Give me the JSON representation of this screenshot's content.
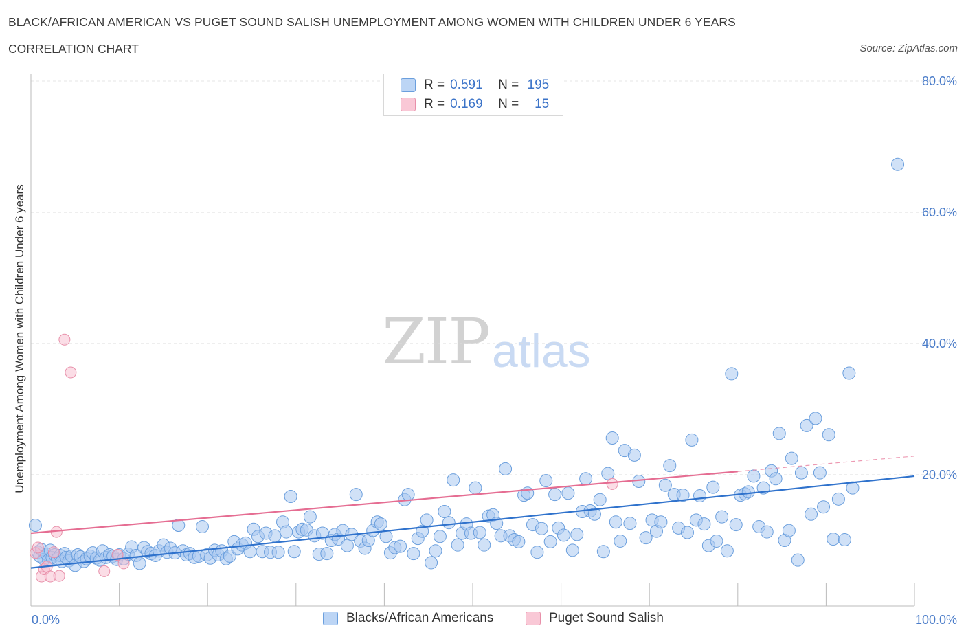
{
  "header": {
    "title": "BLACK/AFRICAN AMERICAN VS PUGET SOUND SALISH UNEMPLOYMENT AMONG WOMEN WITH CHILDREN UNDER 6 YEARS",
    "subtitle": "CORRELATION CHART",
    "source": "Source: ZipAtlas.com"
  },
  "watermark": {
    "zip": "ZIP",
    "atlas": "atlas"
  },
  "legend": {
    "rows": [
      {
        "r_label": "R =",
        "r_value": "0.591",
        "n_label": "N =",
        "n_value": "195"
      },
      {
        "r_label": "R =",
        "r_value": "0.169",
        "n_label": "N =",
        "n_value": "15"
      }
    ]
  },
  "bottom_legend": {
    "series1": "Blacks/African Americans",
    "series2": "Puget Sound Salish"
  },
  "colors": {
    "blue_fill": "#a9c8f0",
    "blue_stroke": "#6b9fdd",
    "blue_line": "#2f72cc",
    "pink_fill": "#f7bccd",
    "pink_stroke": "#e890aa",
    "pink_line": "#e56d92",
    "tick_text": "#4a7cc9"
  },
  "chart_data": {
    "type": "scatter",
    "title": "BLACK/AFRICAN AMERICAN VS PUGET SOUND SALISH UNEMPLOYMENT AMONG WOMEN WITH CHILDREN UNDER 6 YEARS",
    "xlabel": "",
    "ylabel": "Unemployment Among Women with Children Under 6 years",
    "xlim": [
      0,
      100
    ],
    "ylim": [
      0,
      80
    ],
    "x_tick_labels": [
      "0.0%",
      "100.0%"
    ],
    "y_ticks": [
      20,
      40,
      60,
      80
    ],
    "y_tick_labels": [
      "20.0%",
      "40.0%",
      "60.0%",
      "80.0%"
    ],
    "grid": "horizontal dashed",
    "legend_placement": "top-center",
    "series": [
      {
        "name": "Blacks/African Americans",
        "color": "#a9c8f0",
        "trend": {
          "x": [
            0,
            100
          ],
          "y": [
            5.8,
            19.8
          ]
        },
        "points": [
          [
            0.5,
            12.3
          ],
          [
            0.8,
            8.2
          ],
          [
            1.0,
            7.6
          ],
          [
            1.2,
            8.6
          ],
          [
            1.5,
            7.1
          ],
          [
            1.8,
            7.9
          ],
          [
            2.0,
            7.0
          ],
          [
            2.2,
            8.5
          ],
          [
            2.4,
            7.4
          ],
          [
            2.7,
            7.8
          ],
          [
            3.0,
            7.2
          ],
          [
            3.3,
            7.7
          ],
          [
            3.5,
            6.8
          ],
          [
            3.8,
            8.0
          ],
          [
            4.0,
            7.4
          ],
          [
            4.3,
            6.9
          ],
          [
            4.6,
            7.6
          ],
          [
            5.0,
            6.2
          ],
          [
            5.3,
            7.8
          ],
          [
            5.6,
            7.5
          ],
          [
            6.0,
            6.8
          ],
          [
            6.3,
            7.2
          ],
          [
            6.7,
            7.6
          ],
          [
            7.0,
            8.1
          ],
          [
            7.4,
            7.3
          ],
          [
            7.8,
            7.0
          ],
          [
            8.1,
            8.4
          ],
          [
            8.5,
            7.4
          ],
          [
            8.9,
            7.8
          ],
          [
            9.3,
            7.6
          ],
          [
            9.7,
            7.1
          ],
          [
            10.0,
            7.8
          ],
          [
            10.5,
            7.2
          ],
          [
            11.0,
            7.9
          ],
          [
            11.4,
            9.0
          ],
          [
            11.9,
            7.7
          ],
          [
            12.3,
            6.5
          ],
          [
            12.8,
            8.9
          ],
          [
            13.2,
            8.3
          ],
          [
            13.6,
            8.0
          ],
          [
            14.1,
            7.7
          ],
          [
            14.5,
            8.4
          ],
          [
            15.0,
            9.3
          ],
          [
            15.4,
            8.2
          ],
          [
            15.8,
            8.8
          ],
          [
            16.3,
            8.1
          ],
          [
            16.7,
            12.3
          ],
          [
            17.2,
            8.4
          ],
          [
            17.6,
            7.8
          ],
          [
            18.0,
            8.0
          ],
          [
            18.5,
            7.4
          ],
          [
            19.0,
            7.6
          ],
          [
            19.4,
            12.1
          ],
          [
            19.9,
            7.8
          ],
          [
            20.3,
            7.3
          ],
          [
            20.8,
            8.5
          ],
          [
            21.2,
            7.8
          ],
          [
            21.6,
            8.4
          ],
          [
            22.1,
            7.2
          ],
          [
            22.5,
            7.6
          ],
          [
            23.0,
            9.8
          ],
          [
            23.4,
            8.7
          ],
          [
            23.9,
            9.3
          ],
          [
            24.3,
            9.6
          ],
          [
            24.8,
            8.3
          ],
          [
            25.2,
            11.7
          ],
          [
            25.7,
            10.6
          ],
          [
            26.2,
            8.3
          ],
          [
            26.6,
            11.1
          ],
          [
            27.1,
            8.2
          ],
          [
            27.6,
            10.7
          ],
          [
            28.0,
            8.2
          ],
          [
            28.5,
            12.8
          ],
          [
            28.9,
            11.3
          ],
          [
            29.4,
            16.7
          ],
          [
            29.8,
            8.3
          ],
          [
            30.3,
            11.3
          ],
          [
            30.7,
            11.7
          ],
          [
            31.2,
            11.6
          ],
          [
            31.6,
            13.6
          ],
          [
            32.1,
            10.7
          ],
          [
            32.6,
            7.9
          ],
          [
            33.0,
            11.1
          ],
          [
            33.5,
            8.0
          ],
          [
            34.0,
            10.0
          ],
          [
            34.4,
            10.9
          ],
          [
            34.8,
            10.2
          ],
          [
            35.3,
            11.5
          ],
          [
            35.8,
            9.2
          ],
          [
            36.3,
            10.9
          ],
          [
            36.8,
            17.0
          ],
          [
            37.3,
            9.9
          ],
          [
            37.8,
            8.8
          ],
          [
            38.2,
            10.0
          ],
          [
            38.7,
            11.5
          ],
          [
            39.2,
            12.8
          ],
          [
            39.6,
            12.5
          ],
          [
            40.2,
            10.6
          ],
          [
            40.7,
            8.1
          ],
          [
            41.2,
            8.9
          ],
          [
            41.8,
            9.1
          ],
          [
            42.3,
            16.2
          ],
          [
            42.7,
            17.0
          ],
          [
            43.3,
            8.0
          ],
          [
            43.8,
            10.3
          ],
          [
            44.3,
            11.4
          ],
          [
            44.8,
            13.1
          ],
          [
            45.3,
            6.6
          ],
          [
            45.8,
            8.4
          ],
          [
            46.3,
            10.6
          ],
          [
            46.8,
            14.4
          ],
          [
            47.3,
            12.7
          ],
          [
            47.8,
            19.2
          ],
          [
            48.3,
            9.3
          ],
          [
            48.8,
            11.1
          ],
          [
            49.3,
            12.5
          ],
          [
            49.8,
            11.1
          ],
          [
            50.3,
            18.0
          ],
          [
            50.8,
            11.2
          ],
          [
            51.3,
            9.3
          ],
          [
            51.8,
            13.7
          ],
          [
            52.3,
            13.9
          ],
          [
            52.7,
            12.6
          ],
          [
            53.2,
            10.7
          ],
          [
            53.7,
            20.9
          ],
          [
            54.2,
            10.7
          ],
          [
            54.7,
            10.1
          ],
          [
            55.2,
            9.8
          ],
          [
            55.8,
            16.9
          ],
          [
            56.2,
            17.2
          ],
          [
            56.8,
            12.4
          ],
          [
            57.3,
            8.2
          ],
          [
            57.8,
            11.8
          ],
          [
            58.3,
            19.1
          ],
          [
            58.8,
            9.8
          ],
          [
            59.3,
            17.0
          ],
          [
            59.7,
            11.9
          ],
          [
            60.3,
            10.8
          ],
          [
            60.8,
            17.2
          ],
          [
            61.3,
            8.5
          ],
          [
            61.8,
            10.9
          ],
          [
            62.4,
            14.4
          ],
          [
            62.8,
            19.4
          ],
          [
            63.3,
            14.5
          ],
          [
            63.8,
            14.0
          ],
          [
            64.4,
            16.2
          ],
          [
            64.8,
            8.3
          ],
          [
            65.3,
            20.2
          ],
          [
            65.8,
            25.6
          ],
          [
            66.2,
            12.8
          ],
          [
            66.7,
            9.9
          ],
          [
            67.2,
            23.7
          ],
          [
            67.8,
            12.6
          ],
          [
            68.3,
            23.0
          ],
          [
            68.8,
            19.0
          ],
          [
            69.6,
            10.4
          ],
          [
            70.3,
            13.1
          ],
          [
            70.8,
            11.4
          ],
          [
            71.3,
            12.8
          ],
          [
            71.8,
            18.4
          ],
          [
            72.3,
            21.4
          ],
          [
            72.8,
            17.0
          ],
          [
            73.3,
            11.9
          ],
          [
            73.8,
            16.9
          ],
          [
            74.3,
            11.2
          ],
          [
            74.8,
            25.3
          ],
          [
            75.3,
            13.1
          ],
          [
            75.7,
            16.8
          ],
          [
            76.2,
            12.5
          ],
          [
            76.7,
            9.2
          ],
          [
            77.2,
            18.1
          ],
          [
            77.6,
            9.9
          ],
          [
            78.2,
            13.6
          ],
          [
            78.8,
            8.4
          ],
          [
            79.3,
            35.4
          ],
          [
            79.8,
            12.4
          ],
          [
            80.3,
            16.9
          ],
          [
            80.8,
            17.1
          ],
          [
            81.2,
            17.4
          ],
          [
            81.8,
            19.8
          ],
          [
            82.4,
            12.1
          ],
          [
            82.9,
            18.0
          ],
          [
            83.3,
            11.3
          ],
          [
            83.8,
            20.6
          ],
          [
            84.3,
            19.4
          ],
          [
            84.7,
            26.3
          ],
          [
            85.3,
            10.0
          ],
          [
            85.8,
            11.5
          ],
          [
            86.1,
            22.5
          ],
          [
            86.8,
            7.0
          ],
          [
            87.2,
            20.3
          ],
          [
            87.8,
            27.5
          ],
          [
            88.3,
            14.0
          ],
          [
            88.8,
            28.6
          ],
          [
            89.3,
            20.3
          ],
          [
            89.7,
            15.1
          ],
          [
            90.3,
            26.1
          ],
          [
            90.8,
            10.2
          ],
          [
            91.4,
            16.3
          ],
          [
            92.1,
            10.1
          ],
          [
            92.6,
            35.5
          ],
          [
            93.0,
            18.0
          ],
          [
            98.1,
            67.3
          ]
        ]
      },
      {
        "name": "Puget Sound Salish",
        "color": "#f7bccd",
        "trend": {
          "x": [
            0,
            80
          ],
          "y": [
            11.1,
            20.5
          ]
        },
        "points": [
          [
            0.5,
            8.1
          ],
          [
            0.8,
            8.9
          ],
          [
            1.2,
            4.5
          ],
          [
            1.5,
            5.6
          ],
          [
            1.8,
            6.0
          ],
          [
            2.2,
            4.5
          ],
          [
            2.6,
            8.2
          ],
          [
            2.9,
            11.3
          ],
          [
            3.2,
            4.6
          ],
          [
            3.8,
            40.6
          ],
          [
            4.5,
            35.6
          ],
          [
            8.3,
            5.3
          ],
          [
            9.8,
            7.8
          ],
          [
            10.5,
            6.5
          ],
          [
            65.8,
            18.6
          ]
        ]
      }
    ]
  }
}
